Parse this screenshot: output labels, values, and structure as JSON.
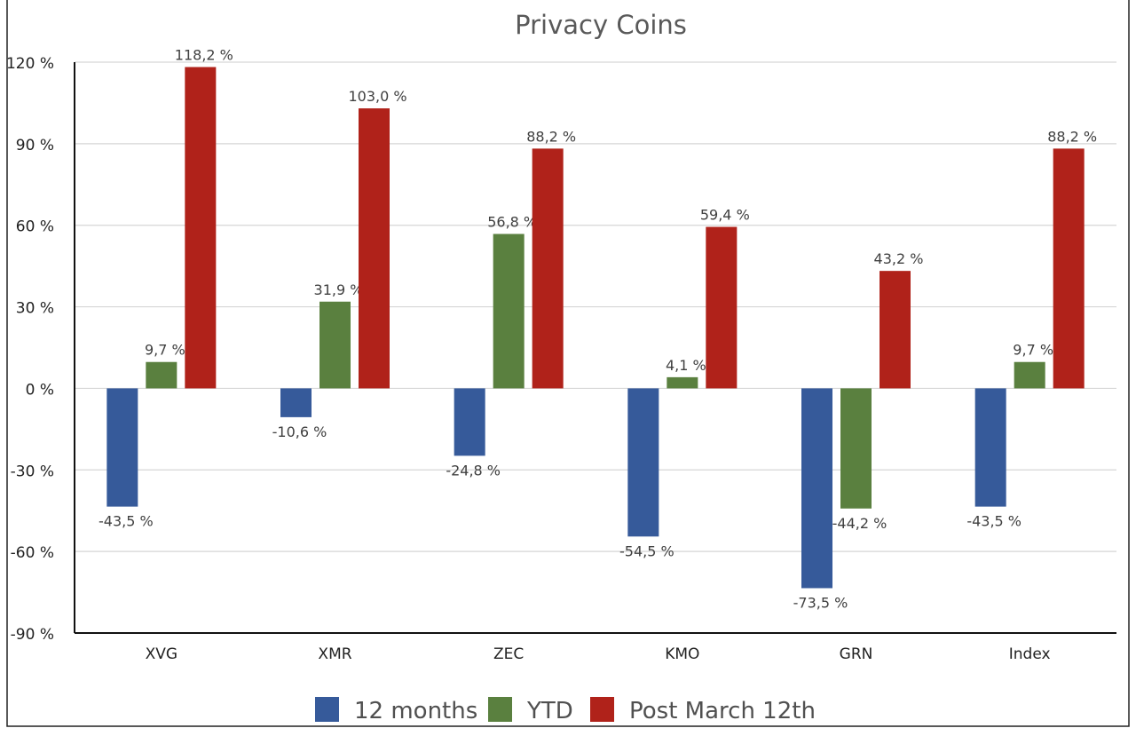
{
  "chart_data": {
    "type": "bar",
    "title": "Privacy Coins",
    "categories": [
      "XVG",
      "XMR",
      "ZEC",
      "KMO",
      "GRN",
      "Index"
    ],
    "series": [
      {
        "name": "12 months",
        "color": "#365a9a",
        "values": [
          -43.5,
          -10.6,
          -24.8,
          -54.5,
          -73.5,
          -43.5
        ],
        "labels": [
          "-43,5 %",
          "-10,6 %",
          "-24,8 %",
          "-54,5 %",
          "-73,5 %",
          "-43,5 %"
        ]
      },
      {
        "name": "YTD",
        "color": "#5a803f",
        "values": [
          9.7,
          31.9,
          56.8,
          4.1,
          -44.2,
          9.7
        ],
        "labels": [
          "9,7 %",
          "31,9 %",
          "56,8 %",
          "4,1 %",
          "-44,2 %",
          "9,7 %"
        ]
      },
      {
        "name": "Post March 12th",
        "color": "#b0221a",
        "values": [
          118.2,
          103.0,
          88.2,
          59.4,
          43.2,
          88.2
        ],
        "labels": [
          "118,2 %",
          "103,0 %",
          "88,2 %",
          "59,4 %",
          "43,2 %",
          "88,2 %"
        ]
      }
    ],
    "ylim": [
      -90,
      120
    ],
    "yticks": [
      120,
      90,
      60,
      30,
      0,
      -30,
      -60,
      -90
    ],
    "ytick_labels": [
      "120 %",
      "90 %",
      "60 %",
      "30 %",
      "0 %",
      "-30 %",
      "-60 %",
      "-90 %"
    ],
    "grid": true,
    "legend": "bottom"
  }
}
